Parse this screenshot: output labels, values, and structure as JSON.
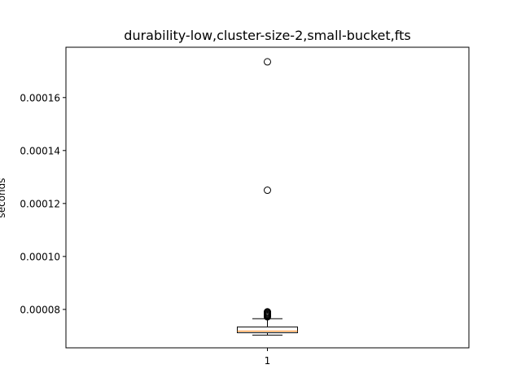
{
  "chart_data": {
    "type": "box",
    "title": "durability-low,cluster-size-2,small-bucket,fts",
    "xlabel": "",
    "ylabel": "seconds",
    "categories": [
      "1"
    ],
    "ylim": [
      6.55e-05,
      0.000179
    ],
    "yticks": [
      {
        "value": 8e-05,
        "label": "0.00008"
      },
      {
        "value": 0.0001,
        "label": "0.00010"
      },
      {
        "value": 0.00012,
        "label": "0.00012"
      },
      {
        "value": 0.00014,
        "label": "0.00014"
      },
      {
        "value": 0.00016,
        "label": "0.00016"
      }
    ],
    "series": [
      {
        "category": "1",
        "whisker_low": 7.03e-05,
        "q1": 7.12e-05,
        "median": 7.18e-05,
        "q3": 7.34e-05,
        "whisker_high": 7.65e-05,
        "outliers": [
          7.72e-05,
          7.75e-05,
          7.78e-05,
          7.8e-05,
          7.83e-05,
          7.86e-05,
          7.89e-05,
          7.91e-05,
          0.000125,
          0.0001735
        ]
      }
    ],
    "grid": false,
    "colors": {
      "box": "#000000",
      "median": "#ff7f0e",
      "outlier": "#000000"
    }
  }
}
